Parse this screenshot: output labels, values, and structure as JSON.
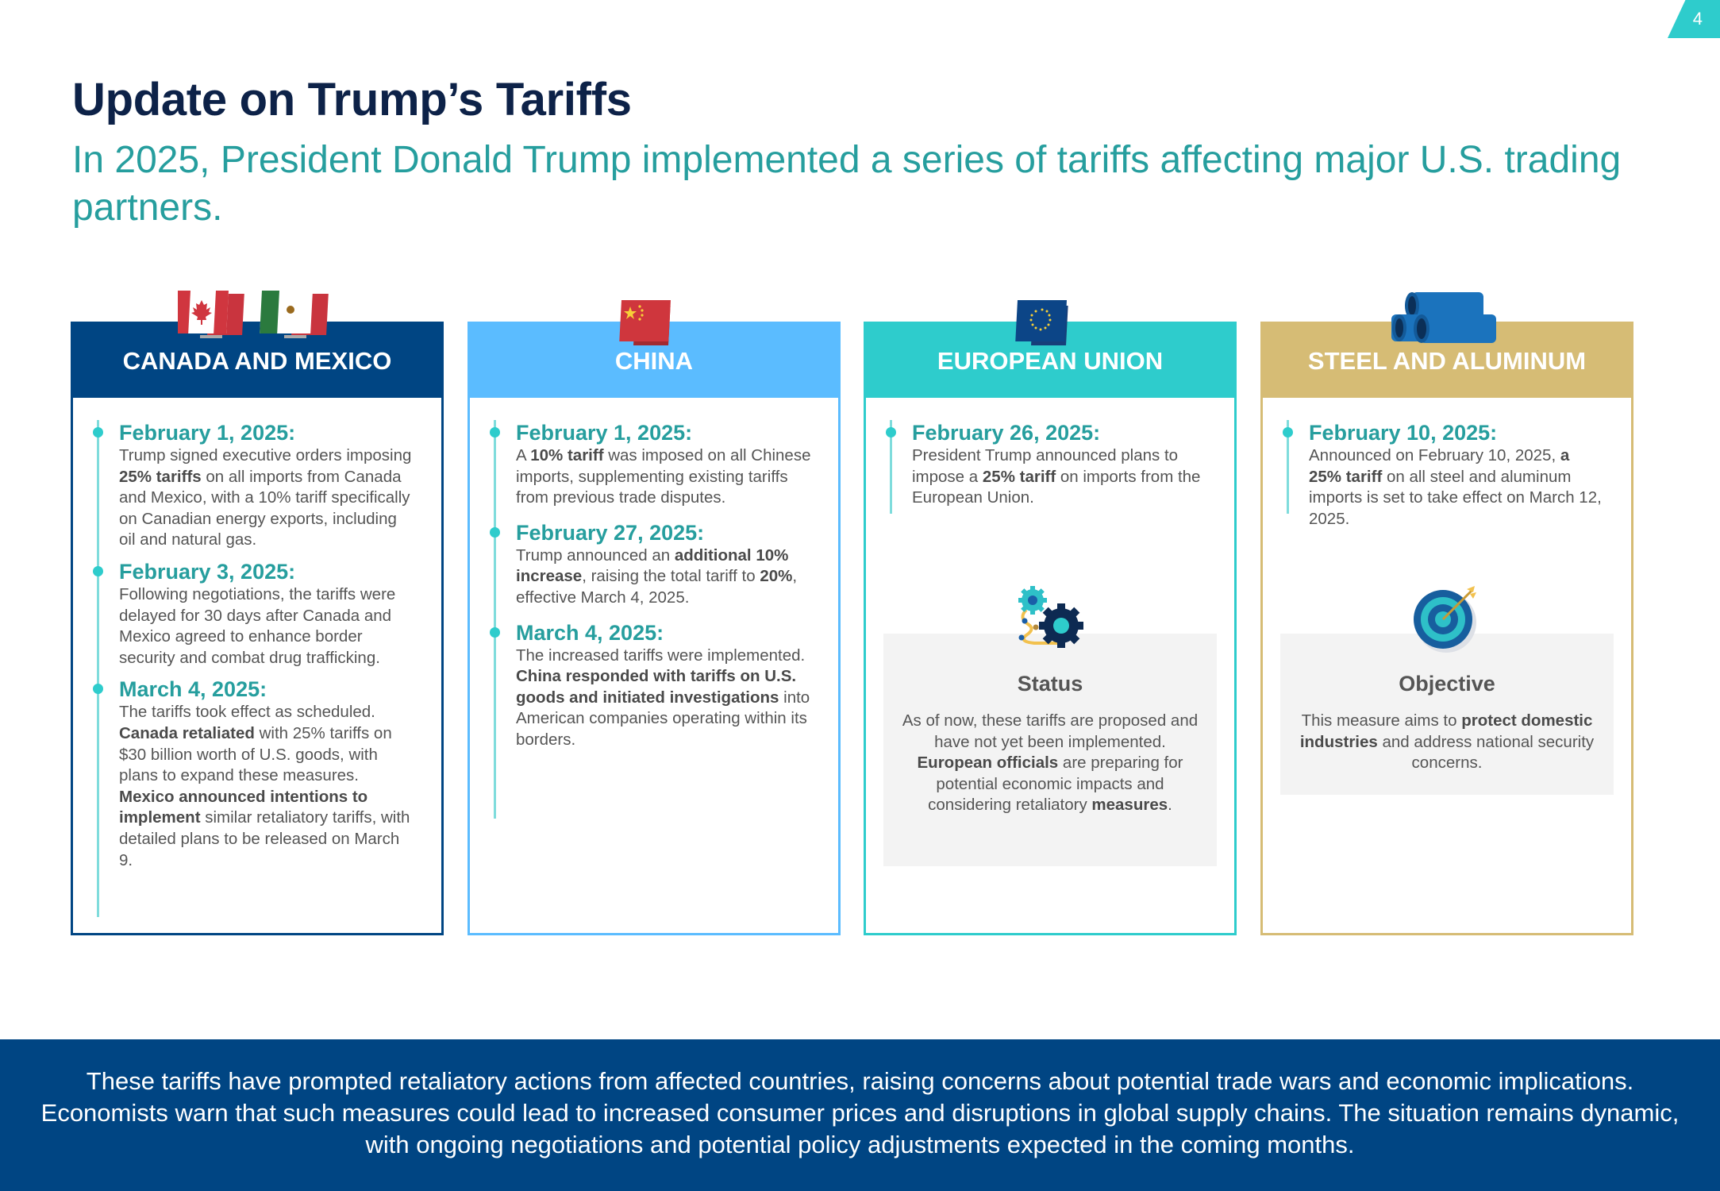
{
  "page_number": "4",
  "header": {
    "title": "Update on Trump’s Tariffs",
    "subtitle": "In 2025, President Donald Trump implemented a series of tariffs affecting major U.S. trading partners."
  },
  "colors": {
    "canada_mexico": "#004583",
    "china": "#5bbcff",
    "eu": "#2ecccc",
    "steel": "#d6bc75",
    "accent_date": "#269e9e",
    "footer_bg": "#004583"
  },
  "cards": [
    {
      "heading": "CANADA AND MEXICO",
      "icon": "canada-mexico-flags-icon",
      "events": [
        {
          "date": "February 1, 2025:",
          "parts": [
            {
              "t": "Trump signed executive orders imposing "
            },
            {
              "t": "25% tariffs",
              "b": true
            },
            {
              "t": " on all imports from Canada and Mexico, with a 10% tariff specifically on Canadian energy exports, including oil and natural gas."
            }
          ]
        },
        {
          "date": "February 3, 2025:",
          "parts": [
            {
              "t": "Following negotiations, the tariffs were delayed for 30 days after Canada and Mexico agreed to enhance border security and combat drug trafficking."
            }
          ]
        },
        {
          "date": "March 4, 2025:",
          "parts": [
            {
              "t": "The tariffs took effect as scheduled. "
            },
            {
              "t": "Canada retaliated",
              "b": true
            },
            {
              "t": " with 25% tariffs on $30 billion worth of U.S. goods, with plans to expand these measures. "
            },
            {
              "t": "Mexico announced intentions to implement",
              "b": true
            },
            {
              "t": " similar retaliatory tariffs, with detailed plans to be released on March 9."
            }
          ]
        }
      ]
    },
    {
      "heading": "CHINA",
      "icon": "china-flag-icon",
      "events": [
        {
          "date": "February 1, 2025:",
          "parts": [
            {
              "t": "A "
            },
            {
              "t": "10% tariff",
              "b": true
            },
            {
              "t": " was imposed on all Chinese imports, supplementing existing tariffs from previous trade disputes."
            }
          ]
        },
        {
          "date": "February 27, 2025:",
          "parts": [
            {
              "t": "Trump announced an "
            },
            {
              "t": "additional 10% increase",
              "b": true
            },
            {
              "t": ", raising the total tariff to "
            },
            {
              "t": "20%",
              "b": true
            },
            {
              "t": ", effective March 4, 2025."
            }
          ]
        },
        {
          "date": "March 4, 2025:",
          "parts": [
            {
              "t": "The increased tariffs were implemented. "
            },
            {
              "t": "China responded with tariffs on U.S. goods and initiated investigations",
              "b": true
            },
            {
              "t": " into American companies operating within its borders."
            }
          ]
        }
      ]
    },
    {
      "heading": "EUROPEAN UNION",
      "icon": "eu-flag-icon",
      "events": [
        {
          "date": "February 26, 2025:",
          "parts": [
            {
              "t": "President Trump announced plans to impose a "
            },
            {
              "t": "25% tariff",
              "b": true
            },
            {
              "t": " on imports from the European Union."
            }
          ]
        }
      ],
      "info": {
        "icon": "gears-icon",
        "title": "Status",
        "parts": [
          {
            "t": "As of now, these tariffs are proposed and have not yet been implemented. "
          },
          {
            "t": "European officials",
            "b": true
          },
          {
            "t": " are preparing for potential economic impacts and considering retaliatory "
          },
          {
            "t": "measures",
            "b": true
          },
          {
            "t": "."
          }
        ]
      }
    },
    {
      "heading": "STEEL AND ALUMINUM",
      "icon": "steel-pipes-icon",
      "events": [
        {
          "date": "February 10, 2025:",
          "parts": [
            {
              "t": "Announced on February 10, 2025, "
            },
            {
              "t": "a 25% tariff",
              "b": true
            },
            {
              "t": " on all steel and aluminum imports is set to take effect on March 12, 2025."
            }
          ]
        }
      ],
      "info": {
        "icon": "target-icon",
        "title": "Objective",
        "parts": [
          {
            "t": "This measure aims to "
          },
          {
            "t": "protect domestic industries",
            "b": true
          },
          {
            "t": " and address national security concerns."
          }
        ]
      }
    }
  ],
  "footer": {
    "text": "These tariffs have prompted retaliatory actions from affected countries, raising concerns about potential trade wars and economic implications. Economists warn that such measures could lead to increased consumer prices and disruptions in global supply chains. The situation remains dynamic, with ongoing negotiations and potential policy adjustments expected in the coming months."
  }
}
